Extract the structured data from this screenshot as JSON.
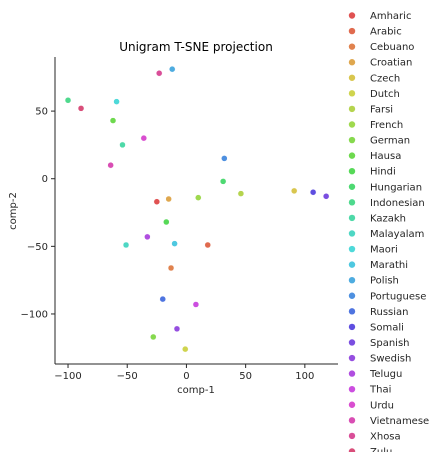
{
  "chart_data": {
    "type": "scatter",
    "title": "Unigram T-SNE projection",
    "xlabel": "comp-1",
    "ylabel": "comp-2",
    "xlim": [
      -111,
      128
    ],
    "ylim": [
      -137,
      90
    ],
    "xticks": [
      -100,
      -50,
      0,
      50,
      100
    ],
    "yticks": [
      -100,
      -50,
      0,
      50
    ],
    "tick_labels_x": [
      "−100",
      "−50",
      "0",
      "50",
      "100"
    ],
    "tick_labels_y": [
      "−100",
      "−50",
      "0",
      "50"
    ],
    "grid": false,
    "legend_position": "outside-right",
    "series": [
      {
        "name": "Amharic",
        "color": "#e05252",
        "x": -25,
        "y": -17
      },
      {
        "name": "Arabic",
        "color": "#e06a4e",
        "x": 18,
        "y": -49
      },
      {
        "name": "Cebuano",
        "color": "#e0824e",
        "x": -13,
        "y": -66
      },
      {
        "name": "Croatian",
        "color": "#dfa74e",
        "x": -15,
        "y": -15
      },
      {
        "name": "Czech",
        "color": "#d9c64e",
        "x": 91,
        "y": -9
      },
      {
        "name": "Dutch",
        "color": "#cfd44e",
        "x": -1,
        "y": -126
      },
      {
        "name": "Farsi",
        "color": "#b5d44e",
        "x": 46,
        "y": -11
      },
      {
        "name": "French",
        "color": "#9fd94e",
        "x": 10,
        "y": -14
      },
      {
        "name": "German",
        "color": "#86d94e",
        "x": -28,
        "y": -117
      },
      {
        "name": "Hausa",
        "color": "#6ed94e",
        "x": -62,
        "y": 43
      },
      {
        "name": "Hindi",
        "color": "#56d957",
        "x": -17,
        "y": -32
      },
      {
        "name": "Hungarian",
        "color": "#4ed972",
        "x": 31,
        "y": -2
      },
      {
        "name": "Indonesian",
        "color": "#4ed98d",
        "x": -100,
        "y": 58
      },
      {
        "name": "Kazakh",
        "color": "#4ed9a8",
        "x": -54,
        "y": 25
      },
      {
        "name": "Malayalam",
        "color": "#4ed7c4",
        "x": -51,
        "y": -49
      },
      {
        "name": "Maori",
        "color": "#4ed9d9",
        "x": -59,
        "y": 57
      },
      {
        "name": "Marathi",
        "color": "#4ec8e0",
        "x": -10,
        "y": -48
      },
      {
        "name": "Polish",
        "color": "#4eace0",
        "x": -12,
        "y": 81
      },
      {
        "name": "Portuguese",
        "color": "#4e90e0",
        "x": 32,
        "y": 15
      },
      {
        "name": "Russian",
        "color": "#4e74e0",
        "x": -20,
        "y": -89
      },
      {
        "name": "Somali",
        "color": "#5e4ee0",
        "x": 107,
        "y": -10
      },
      {
        "name": "Spanish",
        "color": "#7a4ee0",
        "x": 118,
        "y": -13
      },
      {
        "name": "Swedish",
        "color": "#954ee0",
        "x": -8,
        "y": -111
      },
      {
        "name": "Telugu",
        "color": "#b04ee0",
        "x": -33,
        "y": -43
      },
      {
        "name": "Thai",
        "color": "#cc4ee0",
        "x": 8,
        "y": -93
      },
      {
        "name": "Urdu",
        "color": "#d94ed0",
        "x": -36,
        "y": 30
      },
      {
        "name": "Vietnamese",
        "color": "#d94eb4",
        "x": -64,
        "y": 10
      },
      {
        "name": "Xhosa",
        "color": "#d94e98",
        "x": -23,
        "y": 78
      },
      {
        "name": "Zulu",
        "color": "#d94e7a",
        "x": -89,
        "y": 52
      }
    ]
  }
}
